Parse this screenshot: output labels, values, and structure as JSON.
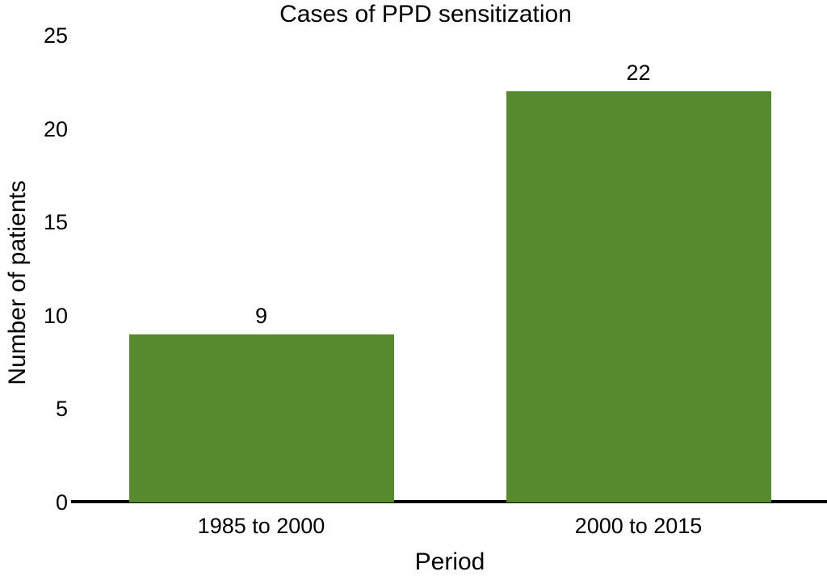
{
  "chart_data": {
    "type": "bar",
    "title": "Cases of PPD sensitization",
    "xlabel": "Period",
    "ylabel": "Number of patients",
    "categories": [
      "1985 to 2000",
      "2000 to 2015"
    ],
    "values": [
      9,
      22
    ],
    "bar_value_labels": [
      "9",
      "22"
    ],
    "yticks": [
      0,
      5,
      10,
      15,
      20,
      25
    ],
    "ylim": [
      0,
      25
    ],
    "grid": false,
    "legend": "none",
    "colors": {
      "bar": "#568A2C",
      "axis": "#000000",
      "text": "#000000",
      "background": "#FFFFFF"
    }
  }
}
